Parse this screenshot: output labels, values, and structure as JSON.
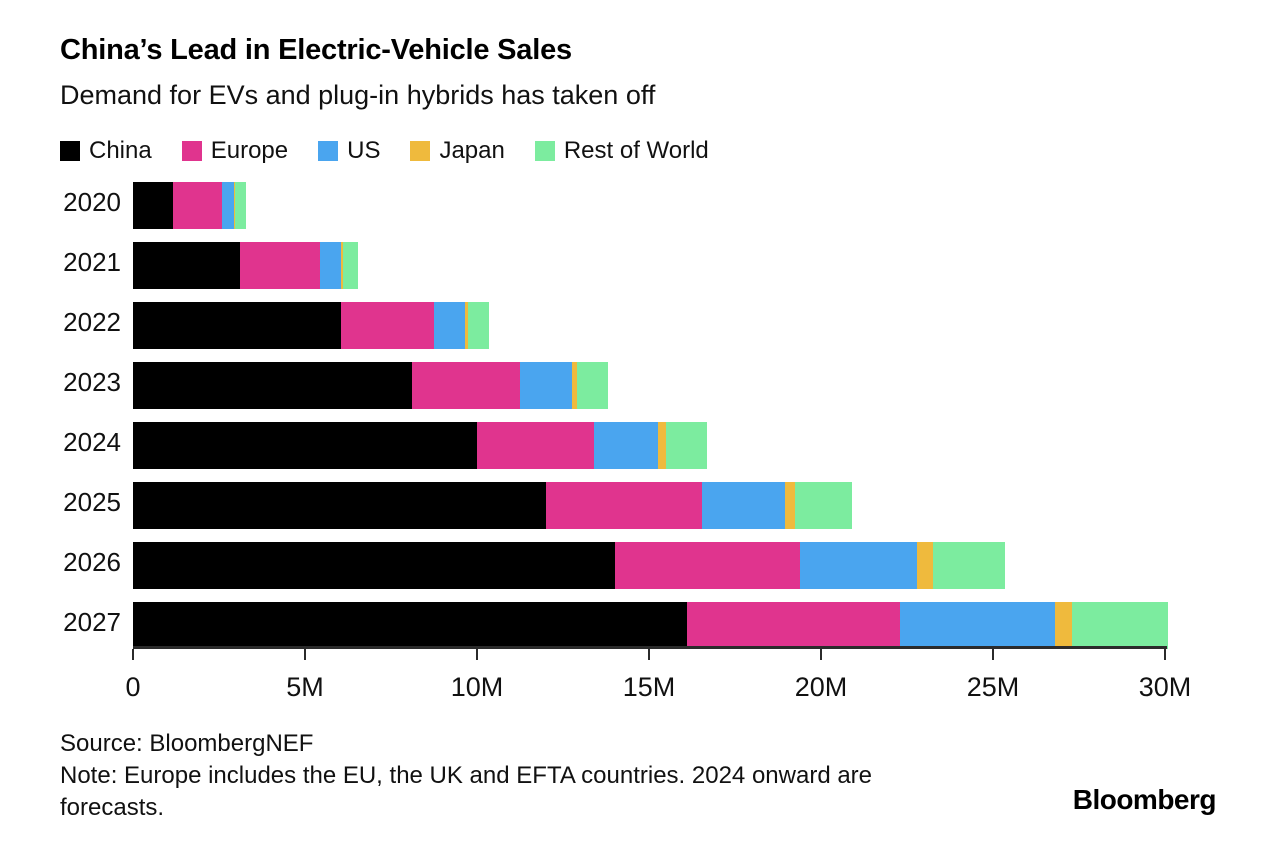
{
  "header": {
    "title": "China’s Lead in Electric-Vehicle Sales",
    "subtitle": "Demand for EVs and plug-in hybrids has taken off"
  },
  "chart_data": {
    "type": "bar",
    "orientation": "horizontal",
    "stacked": true,
    "title": "China’s Lead in Electric-Vehicle Sales",
    "subtitle": "Demand for EVs and plug-in hybrids has taken off",
    "categories": [
      "2020",
      "2021",
      "2022",
      "2023",
      "2024",
      "2025",
      "2026",
      "2027"
    ],
    "series": [
      {
        "name": "China",
        "color": "#000000",
        "values": [
          1.15,
          3.1,
          6.05,
          8.1,
          10.0,
          12.0,
          14.0,
          16.1
        ]
      },
      {
        "name": "Europe",
        "color": "#e0348e",
        "values": [
          1.45,
          2.35,
          2.7,
          3.15,
          3.4,
          4.55,
          5.4,
          6.2
        ]
      },
      {
        "name": "US",
        "color": "#4aa5ef",
        "values": [
          0.35,
          0.6,
          0.9,
          1.5,
          1.85,
          2.4,
          3.4,
          4.5
        ]
      },
      {
        "name": "Japan",
        "color": "#efba3d",
        "values": [
          0.03,
          0.05,
          0.1,
          0.15,
          0.25,
          0.3,
          0.45,
          0.5
        ]
      },
      {
        "name": "Rest of World",
        "color": "#7cec9f",
        "values": [
          0.3,
          0.45,
          0.6,
          0.9,
          1.2,
          1.65,
          2.1,
          2.8
        ]
      }
    ],
    "units": "millions of vehicles (M)",
    "xlabel": "",
    "ylabel": "",
    "xlim": [
      0,
      30
    ],
    "x_ticks": [
      "0",
      "5M",
      "10M",
      "15M",
      "20M",
      "25M",
      "30M"
    ],
    "x_tick_values": [
      0,
      5,
      10,
      15,
      20,
      25,
      30
    ],
    "grid": false,
    "legend_position": "top",
    "axis_color": "#2b2b2b"
  },
  "footer": {
    "source": "Source: BloombergNEF",
    "note": "Note: Europe includes the EU, the UK and EFTA countries. 2024 onward are forecasts.",
    "logo": "Bloomberg"
  }
}
